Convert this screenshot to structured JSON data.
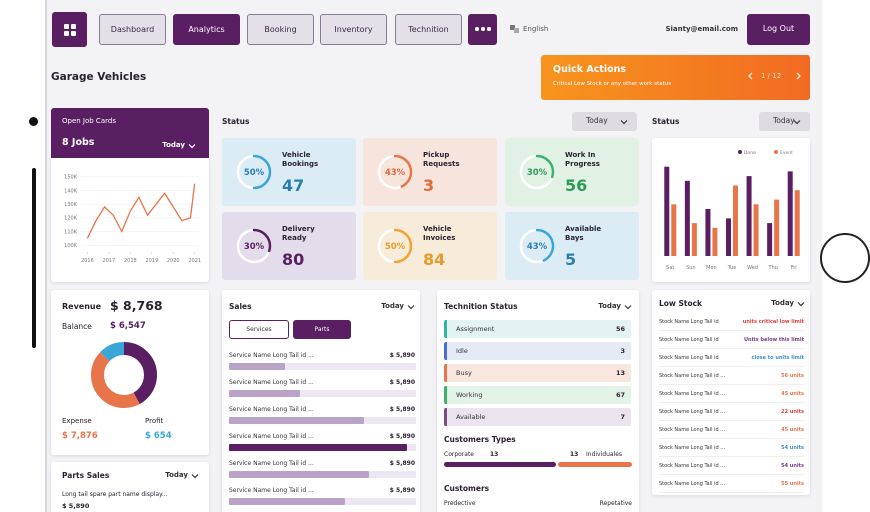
{
  "nav": {
    "items": [
      "Dashboard",
      "Analytics",
      "Booking",
      "Inventory",
      "Technition"
    ],
    "active": 1,
    "language": "English",
    "email": "Sianty@email.com",
    "logout": "Log Out"
  },
  "page_title": "Garage Vehicles",
  "quick_actions": {
    "title": "Quick Actions",
    "subtitle": "Critical Low Stock or any other work status",
    "pager": "1 / 12"
  },
  "open_jobs": {
    "title": "Open Job Cards",
    "count": "8 Jobs",
    "filter": "Today"
  },
  "status": {
    "title": "Status",
    "filter": "Today",
    "tiles": [
      {
        "label": "Vehicle Bookings",
        "percent": 50,
        "percent_label": "50%",
        "value": 47,
        "ring": "#3aa6d8",
        "tint": "#dcecf5",
        "text": "#2a7fb0"
      },
      {
        "label": "Pickup Requests",
        "percent": 43,
        "percent_label": "43%",
        "value": 3,
        "ring": "#e8744a",
        "tint": "#f6e4dd",
        "text": "#e06a3c"
      },
      {
        "label": "Work In Progress",
        "percent": 30,
        "percent_label": "30%",
        "value": 56,
        "ring": "#3bb36b",
        "tint": "#e1f2e4",
        "text": "#2e9a57"
      },
      {
        "label": "Delivery Ready",
        "percent": 30,
        "percent_label": "30%",
        "value": 80,
        "ring": "#5a1e62",
        "tint": "#e3dcea",
        "text": "#5a1e62"
      },
      {
        "label": "Vehicle Invoices",
        "percent": 50,
        "percent_label": "50%",
        "value": 84,
        "ring": "#f2a232",
        "tint": "#f7ecd9",
        "text": "#e89a2a"
      },
      {
        "label": "Available Bays",
        "percent": 43,
        "percent_label": "43%",
        "value": 5,
        "ring": "#3aa6d8",
        "tint": "#dcecf5",
        "text": "#2a7fb0"
      }
    ]
  },
  "chart_data": [
    {
      "type": "line",
      "color": "#e8744a",
      "x": [
        2016,
        2016.4,
        2016.8,
        2017.2,
        2017.6,
        2018,
        2018.4,
        2018.8,
        2019.2,
        2019.6,
        2020,
        2020.4,
        2020.8,
        2021
      ],
      "values": [
        105000,
        118000,
        128000,
        122000,
        110000,
        125000,
        135000,
        122000,
        130000,
        138000,
        128000,
        118000,
        120000,
        145000
      ],
      "xlim": [
        2015.7,
        2021.2
      ],
      "ylim": [
        95000,
        155000
      ],
      "xticks": [
        2016,
        2017,
        2018,
        2019,
        2020,
        2021
      ],
      "yticks": [
        {
          "value": 100000,
          "label": "100K"
        },
        {
          "value": 110000,
          "label": "110K"
        },
        {
          "value": 120000,
          "label": "120K"
        },
        {
          "value": 130000,
          "label": "130K"
        },
        {
          "value": 140000,
          "label": "140K"
        },
        {
          "value": 150000,
          "label": "150K"
        }
      ],
      "grid": true
    },
    {
      "type": "bar",
      "title": "Status",
      "filter": "Today",
      "categories": [
        "Sat",
        "Sun",
        "Mon",
        "Tue",
        "Wed",
        "Thu",
        "Fri"
      ],
      "series": [
        {
          "name": "Done",
          "color": "#5a1e62",
          "values": [
            95,
            80,
            50,
            40,
            85,
            35,
            90
          ]
        },
        {
          "name": "Event",
          "color": "#e8744a",
          "values": [
            55,
            35,
            30,
            75,
            55,
            60,
            70
          ]
        }
      ],
      "ylim": [
        0,
        100
      ]
    }
  ],
  "revenue": {
    "revenue_label": "Revenue",
    "revenue": "$ 8,768",
    "balance_label": "Balance",
    "balance": "$ 6,547",
    "expense_label": "Expense",
    "expense": "$ 7,876",
    "profit_label": "Profit",
    "profit": "$ 654",
    "donut": [
      {
        "value": 42,
        "color": "#5a1e62"
      },
      {
        "value": 45,
        "color": "#e8744a"
      },
      {
        "value": 13,
        "color": "#3aa6d8"
      }
    ]
  },
  "parts_sales": {
    "title": "Parts Sales",
    "filter": "Today",
    "item": "Long tail spare part name display...",
    "amount": "$ 5,890"
  },
  "sales": {
    "title": "Sales",
    "filter": "Today",
    "tabs": [
      "Services",
      "Parts"
    ],
    "active_tab": 1,
    "rows": [
      {
        "name": "Service Name Long Tail id ...",
        "amount": "$ 5,890",
        "progress": 30
      },
      {
        "name": "Service Name Long Tail id ...",
        "amount": "$ 5,890",
        "progress": 38
      },
      {
        "name": "Service Name Long Tail id ...",
        "amount": "$ 5,890",
        "progress": 72
      },
      {
        "name": "Service Name Long Tail id ...",
        "amount": "$ 5,890",
        "progress": 95
      },
      {
        "name": "Service Name Long Tail id ...",
        "amount": "$ 5,890",
        "progress": 75
      },
      {
        "name": "Service Name Long Tail id ...",
        "amount": "$ 5,890",
        "progress": 62
      }
    ]
  },
  "technician": {
    "title": "Technition Status",
    "filter": "Today",
    "rows": [
      {
        "label": "Assignment",
        "count": 56,
        "color": "#2fb5a8",
        "tint": "#e2f3f1"
      },
      {
        "label": "Idle",
        "count": 3,
        "color": "#4a6fd0",
        "tint": "#e6eaf7"
      },
      {
        "label": "Busy",
        "count": 13,
        "color": "#e8744a",
        "tint": "#f8e6df"
      },
      {
        "label": "Working",
        "count": 67,
        "color": "#3bb36b",
        "tint": "#e3f3e7"
      },
      {
        "label": "Available",
        "count": 7,
        "color": "#7a4a8a",
        "tint": "#ebe4ef"
      }
    ]
  },
  "customer_types": {
    "title": "Customers Types",
    "left_label": "Corporate",
    "left": 13,
    "right": 13,
    "right_label": "Individuales",
    "split": 60
  },
  "customers": {
    "title": "Customers",
    "left_label": "Predective",
    "right_label": "Repetative"
  },
  "low_stock": {
    "title": "Low Stock",
    "filter": "Today",
    "rows": [
      {
        "name": "Stock Name Long Tail id",
        "status": "units critical low limit",
        "color": "#e0403a"
      },
      {
        "name": "Stock Name Long Tail id",
        "status": "Units below this limit",
        "color": "#7a3a8a"
      },
      {
        "name": "Stock Name Long Tail id",
        "status": "close to units limit",
        "color": "#3a8fd0"
      },
      {
        "name": "Stock Name Long Tail id ...",
        "status": "56 units",
        "color": "#e8744a"
      },
      {
        "name": "Stock Name Long Tail id ...",
        "status": "45 units",
        "color": "#e8744a"
      },
      {
        "name": "Stock Name Long Tail id ...",
        "status": "22 units",
        "color": "#e0403a"
      },
      {
        "name": "Stock Name Long Tail id ...",
        "status": "45 units",
        "color": "#e8744a"
      },
      {
        "name": "Stock Name Long Tail id ...",
        "status": "54 units",
        "color": "#3a8fd0"
      },
      {
        "name": "Stock Name Long Tail id ...",
        "status": "54 units",
        "color": "#7a3a8a"
      },
      {
        "name": "Stock Name Long Tail id ...",
        "status": "55 units",
        "color": "#e8744a"
      }
    ]
  }
}
